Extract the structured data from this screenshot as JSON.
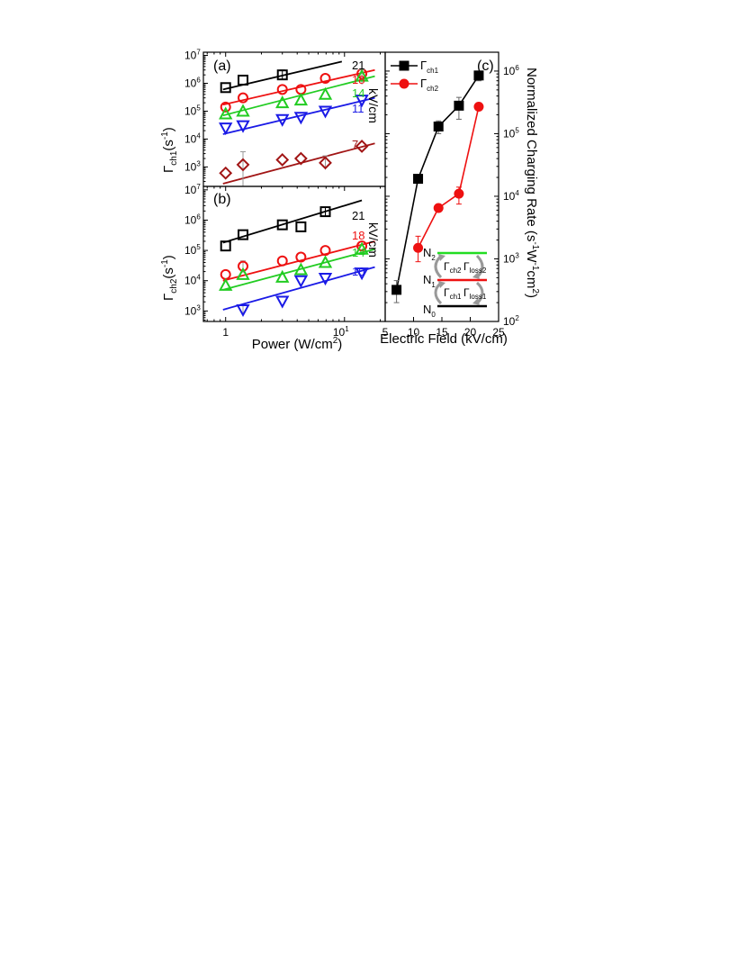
{
  "chart_data": [
    {
      "id": "a",
      "type": "scatter",
      "panel_label": "(a)",
      "xlabel": "Power (W/cm²)",
      "xlabel_base": "Power (W/cm",
      "xlabel_sup": "2",
      "xlabel_end": ")",
      "ylabel_main": "Γ",
      "ylabel_sub": "ch1",
      "ylabel_rest": "(s",
      "ylabel_sup": "-1",
      "ylabel_end": ")",
      "xscale": "log",
      "yscale": "log",
      "xlim": [
        0.65,
        22
      ],
      "ylim": [
        200,
        13000000
      ],
      "yticks": [
        {
          "exp": "3",
          "v": 1000
        },
        {
          "exp": "4",
          "v": 10000
        },
        {
          "exp": "5",
          "v": 100000
        },
        {
          "exp": "6",
          "v": 1000000
        },
        {
          "exp": "7",
          "v": 10000000
        }
      ],
      "field_unit": "kV/cm",
      "series": [
        {
          "name": "21",
          "marker": "square",
          "color": "#000000",
          "x": [
            1.0,
            1.4,
            3.0,
            4.3,
            6.9,
            14
          ],
          "y": [
            700000,
            1300000,
            2000000,
            null,
            null,
            null
          ],
          "fit": [
            [
              0.95,
              600000
            ],
            [
              9.5,
              6000000
            ]
          ],
          "err": [
            null,
            null,
            [
              1400000,
              3000000
            ],
            null,
            null,
            null
          ]
        },
        {
          "name": "18",
          "marker": "circle",
          "color": "#ee1111",
          "x": [
            1.0,
            1.4,
            3.0,
            4.3,
            6.9,
            14
          ],
          "y": [
            140000,
            300000,
            600000,
            600000,
            1500000,
            2200000
          ],
          "fit": [
            [
              0.95,
              170000
            ],
            [
              18,
              3000000
            ]
          ],
          "err": [
            null,
            null,
            null,
            null,
            null,
            null
          ]
        },
        {
          "name": "14",
          "marker": "triangle-up",
          "color": "#22cc22",
          "x": [
            1.0,
            1.4,
            3.0,
            4.3,
            6.9,
            14
          ],
          "y": [
            80000,
            100000,
            200000,
            250000,
            400000,
            1800000
          ],
          "fit": [
            [
              0.95,
              70000
            ],
            [
              18,
              1800000
            ]
          ],
          "err": [
            null,
            null,
            null,
            null,
            null,
            [
              900000,
              3000000
            ]
          ]
        },
        {
          "name": "11",
          "marker": "triangle-down",
          "color": "#1a1ae6",
          "x": [
            1.0,
            1.4,
            3.0,
            4.3,
            6.9,
            14
          ],
          "y": [
            25000,
            30000,
            50000,
            60000,
            100000,
            250000
          ],
          "fit": [
            [
              0.95,
              15000
            ],
            [
              18,
              300000
            ]
          ],
          "err": [
            null,
            null,
            null,
            null,
            null,
            null
          ]
        },
        {
          "name": "7",
          "marker": "diamond",
          "color": "#a11515",
          "x": [
            1.0,
            1.4,
            3.0,
            4.3,
            6.9,
            14
          ],
          "y": [
            600,
            1200,
            1800,
            2000,
            1400,
            5500
          ],
          "fit": [
            [
              0.95,
              250
            ],
            [
              18,
              7000
            ]
          ],
          "err": [
            null,
            [
              200,
              3500
            ],
            null,
            null,
            [
              800,
              2500
            ],
            null
          ]
        }
      ]
    },
    {
      "id": "b",
      "type": "scatter",
      "panel_label": "(b)",
      "ylabel_main": "Γ",
      "ylabel_sub": "ch2",
      "ylabel_rest": "(s",
      "ylabel_sup": "-1",
      "ylabel_end": ")",
      "xscale": "log",
      "yscale": "log",
      "xlim": [
        0.65,
        22
      ],
      "ylim": [
        450,
        13000000
      ],
      "xticks": [
        {
          "label": "1",
          "v": 1
        },
        {
          "label": "10",
          "v": 10
        }
      ],
      "yticks": [
        {
          "exp": "3",
          "v": 1000
        },
        {
          "exp": "4",
          "v": 10000
        },
        {
          "exp": "5",
          "v": 100000
        },
        {
          "exp": "6",
          "v": 1000000
        },
        {
          "exp": "7",
          "v": 10000000
        }
      ],
      "field_unit": "kV/cm",
      "series": [
        {
          "name": "21",
          "marker": "square",
          "color": "#000000",
          "x": [
            1.0,
            1.4,
            3.0,
            4.3,
            6.9
          ],
          "y": [
            140000,
            330000,
            700000,
            600000,
            1900000
          ],
          "fit": [
            [
              0.95,
              180000
            ],
            [
              14,
              4500000
            ]
          ],
          "err": [
            null,
            null,
            null,
            null,
            [
              1400000,
              2600000
            ]
          ]
        },
        {
          "name": "18",
          "marker": "circle",
          "color": "#ee1111",
          "x": [
            1.0,
            1.4,
            3.0,
            4.3,
            6.9,
            14
          ],
          "y": [
            16000,
            30000,
            45000,
            60000,
            100000,
            140000
          ],
          "fit": [
            [
              0.95,
              10000
            ],
            [
              18,
              200000
            ]
          ],
          "err": [
            null,
            [
              18000,
              45000
            ],
            null,
            null,
            null,
            null
          ]
        },
        {
          "name": "14",
          "marker": "triangle-up",
          "color": "#22cc22",
          "x": [
            1.0,
            1.4,
            3.0,
            4.3,
            6.9,
            14
          ],
          "y": [
            7000,
            16000,
            13000,
            23000,
            40000,
            110000
          ],
          "fit": [
            [
              0.95,
              5000
            ],
            [
              18,
              110000
            ]
          ],
          "err": [
            null,
            null,
            null,
            null,
            null,
            null
          ]
        },
        {
          "name": "10",
          "marker": "triangle-down",
          "color": "#1a1ae6",
          "x": [
            1.4,
            3.0,
            4.3,
            6.9,
            14
          ],
          "y": [
            1100,
            2100,
            10000,
            12000,
            18000
          ],
          "fit": [
            [
              0.95,
              1100
            ],
            [
              18,
              28000
            ]
          ],
          "err": [
            [
              700,
              1500
            ],
            null,
            null,
            null,
            null
          ]
        }
      ]
    },
    {
      "id": "c",
      "type": "line",
      "panel_label": "(c)",
      "xlabel": "Electric Field (kV/cm)",
      "ylabel": "Normalized Charging Rate (s⁻¹W⁻¹cm²)",
      "ylabel_parts": [
        "Normalized Charging Rate (s",
        "-1",
        "W",
        "-1",
        "cm",
        "2",
        ")"
      ],
      "yscale": "log",
      "xlim": [
        5,
        25
      ],
      "ylim": [
        100,
        2000000
      ],
      "xticks": [
        5,
        10,
        15,
        20,
        25
      ],
      "yticks": [
        {
          "exp": "2",
          "v": 100
        },
        {
          "exp": "3",
          "v": 1000
        },
        {
          "exp": "4",
          "v": 10000
        },
        {
          "exp": "5",
          "v": 100000
        },
        {
          "exp": "6",
          "v": 1000000
        }
      ],
      "legend_position": "top-left",
      "series": [
        {
          "name": "Γch1",
          "name_main": "Γ",
          "name_sub": "ch1",
          "marker": "square",
          "color": "#000000",
          "x": [
            7,
            10.8,
            14.4,
            18,
            21.5
          ],
          "y": [
            320,
            19000,
            130000,
            280000,
            850000
          ],
          "err": [
            [
              200,
              450
            ],
            null,
            [
              100000,
              160000
            ],
            [
              170000,
              380000
            ],
            [
              700000,
              1000000
            ]
          ]
        },
        {
          "name": "Γch2",
          "name_main": "Γ",
          "name_sub": "ch2",
          "marker": "circle",
          "color": "#ee1111",
          "x": [
            10.8,
            14.4,
            18,
            21.5
          ],
          "y": [
            1500,
            6500,
            11000,
            270000
          ],
          "err": [
            [
              900,
              2300
            ],
            null,
            [
              7500,
              14000
            ],
            null
          ]
        }
      ],
      "inset": {
        "levels": [
          {
            "label": "N",
            "sub": "2",
            "color": "#22dd22"
          },
          {
            "label": "N",
            "sub": "1",
            "color": "#ee1111"
          },
          {
            "label": "N",
            "sub": "0",
            "color": "#000000"
          }
        ],
        "rates": [
          {
            "main": "Γ",
            "sub": "ch2"
          },
          {
            "main": "Γ",
            "sub": "loss2"
          },
          {
            "main": "Γ",
            "sub": "ch1"
          },
          {
            "main": "Γ",
            "sub": "loss1"
          }
        ]
      }
    }
  ]
}
